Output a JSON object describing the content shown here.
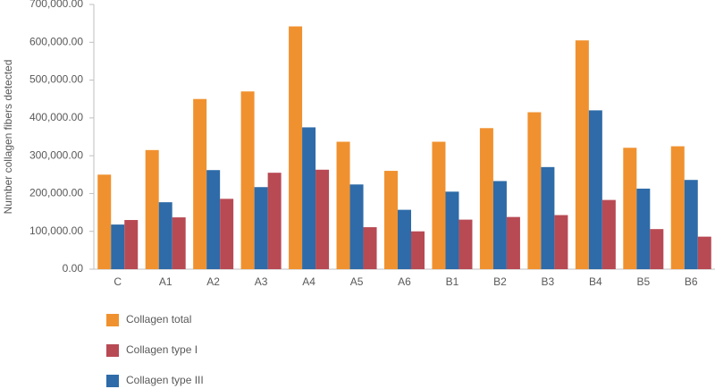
{
  "chart_data": {
    "type": "bar",
    "y_label": "Number collagen fibers detected",
    "categories": [
      "C",
      "A1",
      "A2",
      "A3",
      "A4",
      "A5",
      "A6",
      "B1",
      "B2",
      "B3",
      "B4",
      "B5",
      "B6"
    ],
    "series": [
      {
        "name": "Collagen total",
        "color": "#f0912f",
        "values": [
          250000,
          315000,
          450000,
          470000,
          642000,
          337000,
          260000,
          337000,
          373000,
          415000,
          605000,
          321000,
          325000
        ]
      },
      {
        "name": "Collagen type I",
        "color": "#b84a54",
        "values": [
          130000,
          137000,
          186000,
          255000,
          263000,
          111000,
          100000,
          131000,
          138000,
          143000,
          183000,
          106000,
          86000
        ]
      },
      {
        "name": "Collagen type III",
        "color": "#2e6ba8",
        "values": [
          118000,
          177000,
          262000,
          217000,
          375000,
          224000,
          157000,
          205000,
          233000,
          270000,
          420000,
          213000,
          236000
        ]
      }
    ],
    "ylim": [
      0,
      700000
    ],
    "yticks": [
      {
        "value": 0,
        "label": "0.00"
      },
      {
        "value": 100000,
        "label": "100,000.00"
      },
      {
        "value": 200000,
        "label": "200,000.00"
      },
      {
        "value": 300000,
        "label": "300,000.00"
      },
      {
        "value": 400000,
        "label": "400,000.00"
      },
      {
        "value": 500000,
        "label": "500,000.00"
      },
      {
        "value": 600000,
        "label": "600,000.00"
      },
      {
        "value": 700000,
        "label": "700,000.00"
      }
    ]
  }
}
